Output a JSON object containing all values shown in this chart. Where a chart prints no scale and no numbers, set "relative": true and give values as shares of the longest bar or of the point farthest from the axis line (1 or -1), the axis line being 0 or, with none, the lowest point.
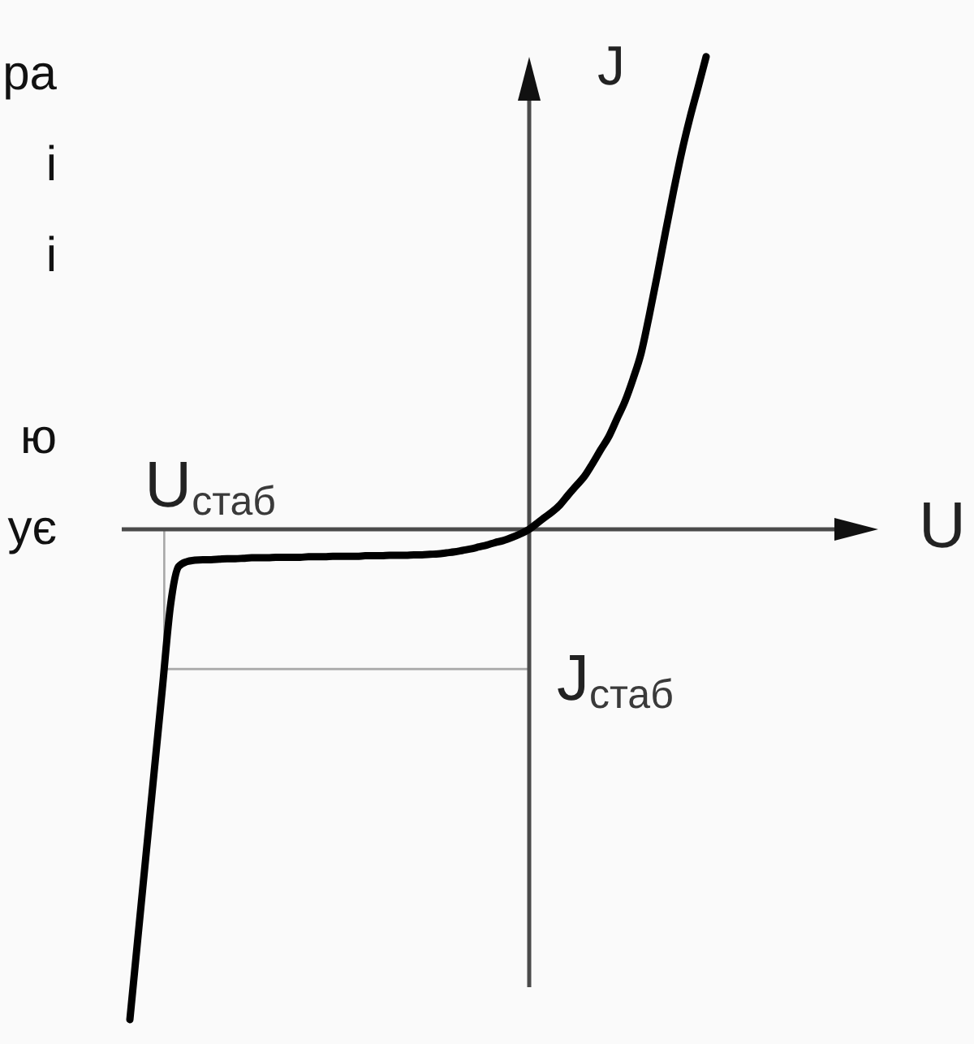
{
  "chart_data": {
    "type": "line",
    "relative": true,
    "xlabel": "U",
    "ylabel": "J",
    "categories": [
      null,
      null,
      null,
      null,
      null,
      null,
      null,
      null,
      null,
      null,
      null,
      null,
      null,
      null,
      null,
      null,
      null,
      null,
      null,
      null,
      null,
      null,
      null,
      null,
      null,
      null,
      null,
      null,
      null,
      null,
      null,
      null,
      null,
      null,
      null,
      null,
      null,
      null,
      null,
      null,
      null,
      null,
      null,
      null,
      null,
      null,
      null,
      null,
      null,
      null,
      null,
      null,
      null,
      null,
      null,
      null,
      null,
      null,
      null,
      null,
      null,
      null,
      null,
      null,
      null,
      null,
      null,
      null,
      null,
      null,
      null,
      null
    ],
    "series": [
      {
        "color": "#000000",
        "values": [
          -1.0,
          -0.831,
          -0.662,
          -0.493,
          -0.325,
          -0.156,
          -0.076,
          -0.066,
          -0.063,
          -0.062,
          -0.062,
          -0.061,
          -0.06,
          -0.06,
          -0.059,
          -0.058,
          -0.058,
          -0.058,
          -0.057,
          -0.057,
          -0.057,
          -0.057,
          -0.056,
          -0.056,
          -0.056,
          -0.055,
          -0.055,
          -0.055,
          -0.055,
          -0.054,
          -0.054,
          -0.054,
          -0.053,
          -0.053,
          -0.053,
          -0.052,
          -0.052,
          -0.051,
          -0.05,
          -0.048,
          -0.046,
          -0.043,
          -0.04,
          -0.036,
          -0.032,
          -0.027,
          -0.023,
          -0.017,
          -0.01,
          -0.002,
          0.01,
          0.023,
          0.035,
          0.05,
          0.07,
          0.089,
          0.108,
          0.134,
          0.162,
          0.189,
          0.225,
          0.261,
          0.307,
          0.36,
          0.437,
          0.52,
          0.607,
          0.691,
          0.77,
          0.839,
          0.901,
          0.964
        ]
      }
    ],
    "ref_lines": [
      {
        "axis": "y",
        "value": -0.285,
        "label": "J$_{стаб}$",
        "color": "#a8a8a8"
      }
    ],
    "annotations": [
      "U$_{стаб}$",
      "ра",
      "і",
      "і",
      "ю",
      "ує"
    ]
  }
}
